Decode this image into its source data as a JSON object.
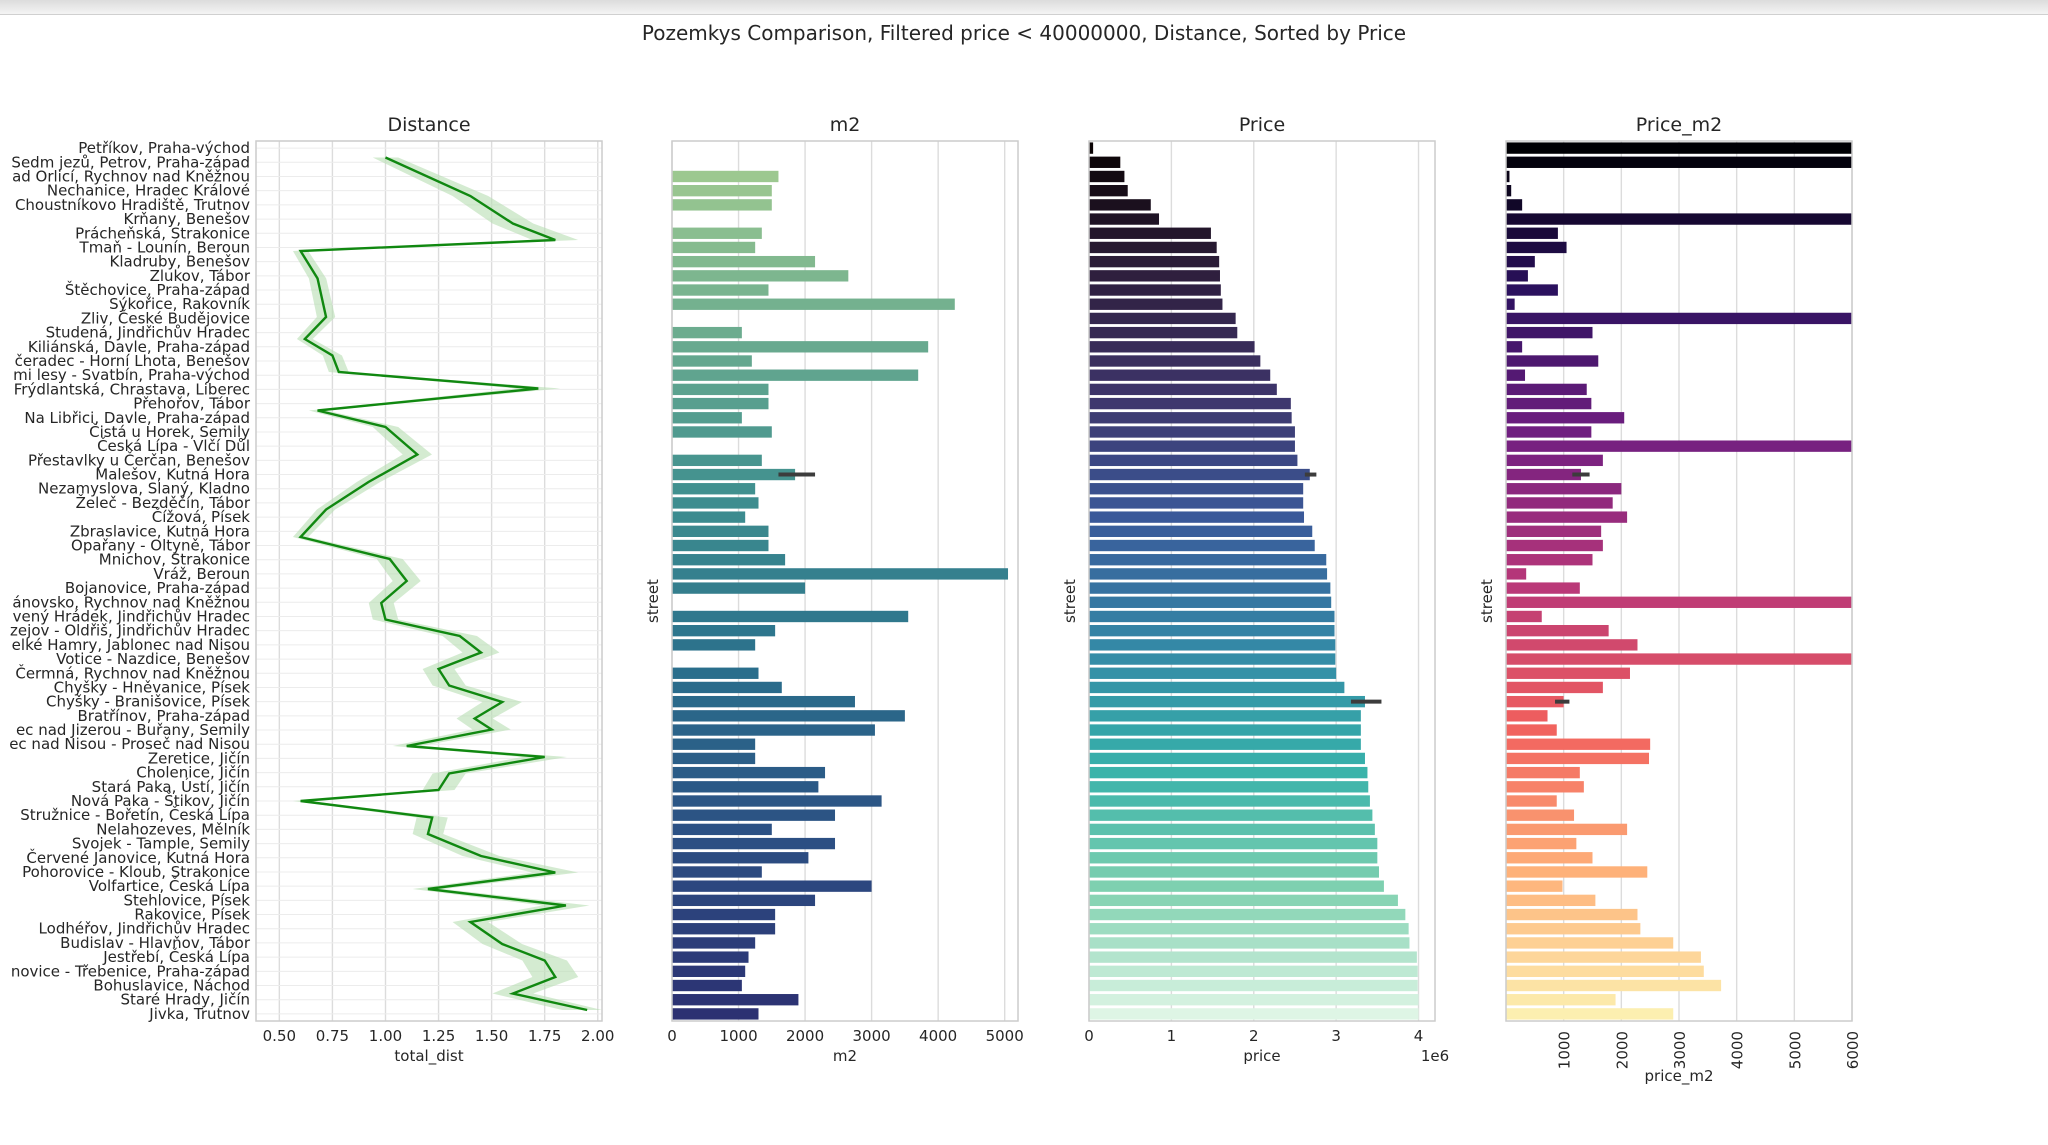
{
  "figure": {
    "suptitle": "Pozemkys Comparison, Filtered price < 40000000, Distance, Sorted by Price"
  },
  "colors": {
    "distance_line": "#108810",
    "distance_band": "#b7ddb2",
    "error_bar": "#3c3c3c",
    "grid": "#dcdcdc",
    "axes_edge": "#cccccc"
  },
  "chart_data": [
    {
      "type": "line",
      "title": "Distance",
      "xlabel": "total_dist",
      "ylabel": "",
      "xlim": [
        0.39,
        2.02
      ],
      "xticks": [
        "0.50",
        "0.75",
        "1.00",
        "1.25",
        "1.50",
        "1.75",
        "2.00"
      ],
      "xtick_values": [
        0.5,
        0.75,
        1.0,
        1.25,
        1.5,
        1.75,
        2.0
      ],
      "grid": true,
      "categories": [
        "Petříkov, Praha-východ",
        "Sedm jezů, Petrov, Praha-západ",
        "ad Orlicí, Rychnov nad Kněžnou",
        "Nechanice, Hradec Králové",
        "Choustníkovo Hradiště, Trutnov",
        "Krňany, Benešov",
        "Prácheňská, Strakonice",
        "Tmaň - Lounín, Beroun",
        "Kladruby, Benešov",
        "Zlukov, Tábor",
        "Štěchovice, Praha-západ",
        "Sýkořice, Rakovník",
        "Zliv, České Budějovice",
        "Studená, Jindřichův Hradec",
        "Kiliánská, Davle, Praha-západ",
        "čeradec - Horní Lhota, Benešov",
        "mi lesy - Svatbín, Praha-východ",
        "Frýdlantská, Chrastava, Liberec",
        "Přehořov, Tábor",
        "Na Libřici, Davle, Praha-západ",
        "Čistá u Horek, Semily",
        "Česká Lípa - Vlčí Důl",
        "Přestavlky u Čerčan, Benešov",
        "Malešov, Kutná Hora",
        "Nezamyslova, Slaný, Kladno",
        "Želeč - Bezděčín, Tábor",
        "Čížová, Písek",
        "Zbraslavice, Kutná Hora",
        "Opařany - Oltyně, Tábor",
        "Mnichov, Strakonice",
        "Vráž, Beroun",
        "Bojanovice, Praha-západ",
        "ánovsko, Rychnov nad Kněžnou",
        "vený Hrádek, Jindřichův Hradec",
        "zejov - Oldřiš, Jindřichův Hradec",
        "elké Hamry, Jablonec nad Nisou",
        "Votice - Nazdice, Benešov",
        "Čermná, Rychnov nad Kněžnou",
        "Chyšky - Hněvanice, Písek",
        "Chyšky - Branišovice, Písek",
        "Bratřínov, Praha-západ",
        "ec nad Jizerou - Buřany, Semily",
        "ec nad Nisou - Proseč nad Nisou",
        "Zeretice, Jičín",
        "Cholenice, Jičín",
        "Stará Paka, Ústí, Jičín",
        "Nová Paka - Štikov, Jičín",
        "Stružnice - Bořetín, Česká Lípa",
        "Nelahozeves, Mělník",
        "Svojek - Tample, Semily",
        "Červené Janovice, Kutná Hora",
        "Pohorovice - Kloub, Strakonice",
        "Volfartice, Česká Lípa",
        "Stehlovice, Písek",
        "Rakovice, Písek",
        "Lodhéřov, Jindřichův Hradec",
        "Budislav - Hlavňov, Tábor",
        "Jestřebí, Česká Lípa",
        "novice - Třebenice, Praha-západ",
        "Bohuslavice, Náchod",
        "Staré Hrady, Jičín",
        "Jivka, Trutnov"
      ],
      "x_values": [
        0.43,
        0.5,
        0.55,
        0.58,
        0.6,
        0.65,
        0.72,
        0.76,
        0.79,
        0.82,
        0.85,
        0.89,
        0.92,
        0.97,
        1.02,
        1.07,
        1.12,
        1.16,
        1.2,
        1.24,
        1.27,
        1.3,
        1.33,
        1.36,
        1.39,
        1.42,
        1.45,
        1.47,
        1.5,
        1.52,
        1.55,
        1.58,
        1.6,
        1.63,
        1.66,
        1.7,
        1.73,
        1.76,
        1.79,
        1.82,
        1.86,
        1.89,
        1.92,
        1.95,
        1.98
      ],
      "line_values": [
        1.0,
        1.4,
        1.6,
        1.8,
        0.6,
        0.68,
        0.72,
        0.62,
        0.75,
        0.78,
        1.72,
        0.68,
        1.0,
        1.15,
        0.92,
        0.72,
        0.6,
        1.02,
        1.1,
        0.98,
        1.0,
        1.35,
        1.45,
        1.25,
        1.3,
        1.55,
        1.42,
        1.5,
        1.1,
        1.75,
        1.3,
        1.25,
        0.6,
        1.22,
        1.2,
        1.45,
        1.8,
        1.2,
        1.85,
        1.4,
        1.55,
        1.75,
        1.8,
        1.6,
        1.95
      ]
    },
    {
      "type": "bar",
      "orientation": "horizontal",
      "title": "m2",
      "xlabel": "m2",
      "ylabel": "street",
      "xlim": [
        0,
        5200
      ],
      "xticks": [
        "0",
        "1000",
        "2000",
        "3000",
        "4000",
        "5000"
      ],
      "xtick_values": [
        0,
        1000,
        2000,
        3000,
        4000,
        5000
      ],
      "grid": true,
      "values": [
        0,
        0,
        1600,
        1500,
        1500,
        0,
        1350,
        1250,
        2150,
        2650,
        1450,
        4250,
        0,
        1050,
        3850,
        1200,
        3700,
        1450,
        1450,
        1050,
        1500,
        0,
        1350,
        1850,
        1250,
        1300,
        1100,
        1450,
        1450,
        1700,
        5050,
        2000,
        0,
        3550,
        1550,
        1250,
        0,
        1300,
        1650,
        2750,
        3500,
        3050,
        1250,
        1250,
        2300,
        2200,
        3150,
        2450,
        1500,
        2450,
        2050,
        1350,
        3000,
        2150,
        1550,
        1550,
        1250,
        1150,
        1100,
        1050,
        1900,
        1300
      ],
      "error_bars": [
        {
          "index": 23,
          "low": 1600,
          "high": 2150
        }
      ],
      "palette": "crest"
    },
    {
      "type": "bar",
      "orientation": "horizontal",
      "title": "Price",
      "xlabel": "price",
      "ylabel": "street",
      "axis_offset_label": "1e6",
      "xlim": [
        0,
        4.2
      ],
      "xticks": [
        "0",
        "1",
        "2",
        "3",
        "4"
      ],
      "xtick_values": [
        0,
        1,
        2,
        3,
        4
      ],
      "grid": true,
      "values": [
        0.05,
        0.38,
        0.43,
        0.47,
        0.75,
        0.85,
        1.48,
        1.55,
        1.58,
        1.59,
        1.6,
        1.62,
        1.78,
        1.8,
        2.01,
        2.08,
        2.2,
        2.28,
        2.45,
        2.46,
        2.5,
        2.5,
        2.53,
        2.68,
        2.6,
        2.6,
        2.61,
        2.71,
        2.74,
        2.88,
        2.89,
        2.93,
        2.94,
        2.98,
        2.98,
        2.99,
        2.99,
        3.0,
        3.1,
        3.35,
        3.3,
        3.3,
        3.3,
        3.35,
        3.38,
        3.39,
        3.41,
        3.44,
        3.47,
        3.5,
        3.5,
        3.52,
        3.58,
        3.75,
        3.84,
        3.88,
        3.89,
        3.98,
        3.99,
        3.99,
        4.0,
        4.0
      ],
      "error_bars": [
        {
          "index": 23,
          "low": 2.62,
          "high": 2.76
        },
        {
          "index": 39,
          "low": 3.18,
          "high": 3.55
        }
      ],
      "palette": "mako"
    },
    {
      "type": "bar",
      "orientation": "horizontal",
      "title": "Price_m2",
      "xlabel": "price_m2",
      "ylabel": "street",
      "xlim": [
        0,
        6000
      ],
      "xticks": [
        "1000",
        "2000",
        "3000",
        "4000",
        "5000",
        "6000"
      ],
      "xtick_values": [
        1000,
        2000,
        3000,
        4000,
        5000,
        6000
      ],
      "grid": true,
      "values": [
        6000,
        6000,
        60,
        90,
        280,
        6000,
        900,
        1050,
        500,
        380,
        900,
        150,
        6000,
        1500,
        280,
        1600,
        330,
        1400,
        1480,
        2050,
        1480,
        6000,
        1680,
        1300,
        2000,
        1850,
        2100,
        1650,
        1680,
        1500,
        350,
        1280,
        6000,
        620,
        1780,
        2280,
        6000,
        2150,
        1680,
        1000,
        720,
        880,
        2500,
        2480,
        1280,
        1350,
        880,
        1180,
        2100,
        1220,
        1500,
        2450,
        980,
        1550,
        2280,
        2330,
        2900,
        3380,
        3430,
        3730,
        1900,
        2900
      ],
      "error_bars": [
        {
          "index": 23,
          "low": 1150,
          "high": 1450
        },
        {
          "index": 39,
          "low": 850,
          "high": 1100
        }
      ],
      "palette": "magma"
    }
  ]
}
